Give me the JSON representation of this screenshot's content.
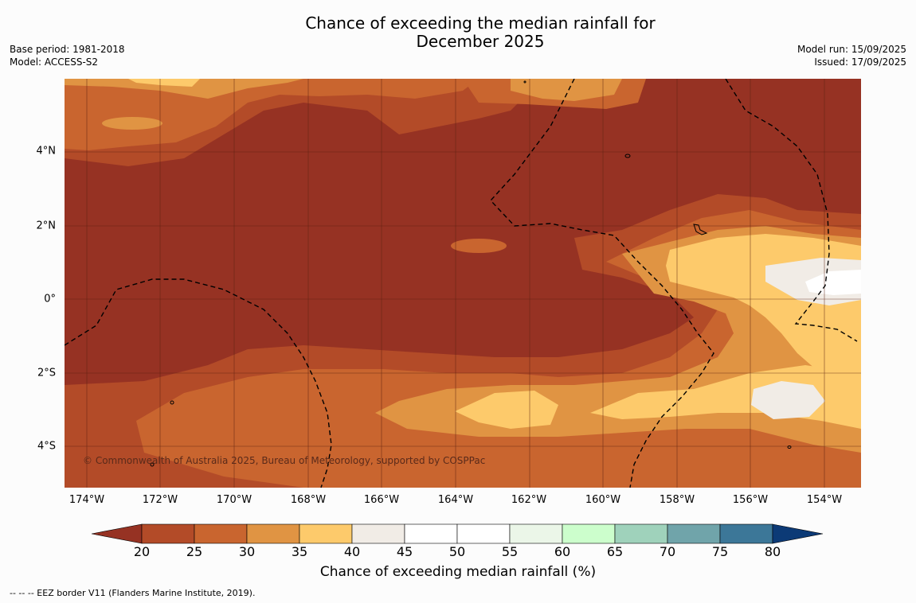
{
  "header": {
    "title_line1": "Chance of exceeding the median rainfall for",
    "title_line2": "December 2025",
    "base_period": "Base period: 1981-2018",
    "model": "Model: ACCESS-S2",
    "model_run": "Model run: 15/09/2025",
    "issued": "Issued: 17/09/2025"
  },
  "map": {
    "lat_labels": [
      "4°N",
      "2°N",
      "0°",
      "2°S",
      "4°S"
    ],
    "lon_labels": [
      "174°W",
      "172°W",
      "170°W",
      "168°W",
      "166°W",
      "164°W",
      "162°W",
      "160°W",
      "158°W",
      "156°W",
      "154°W"
    ],
    "copyright": "© Commonwealth of Australia 2025, Bureau of Meteorology, supported by COSPPac",
    "colors": {
      "below20": "#963223",
      "20_25": "#b34b28",
      "25_30": "#c9652f",
      "30_35": "#e09443",
      "35_40": "#fdca6b",
      "40_45": "#f1ece6"
    }
  },
  "legend": {
    "ticks": [
      "20",
      "25",
      "30",
      "35",
      "40",
      "45",
      "50",
      "55",
      "60",
      "65",
      "70",
      "75",
      "80"
    ],
    "colors": [
      "#963223",
      "#b34b28",
      "#c9652f",
      "#e09443",
      "#fdca6b",
      "#f1ece6",
      "#ffffff",
      "#ffffff",
      "#ebf6e8",
      "#ccfecc",
      "#9fd2bb",
      "#70a4aa",
      "#3c7798",
      "#0c3a76"
    ],
    "label": "Chance of exceeding median rainfall (%)"
  },
  "footnote": "--  --  -- EEZ border V11 (Flanders Marine Institute, 2019)."
}
